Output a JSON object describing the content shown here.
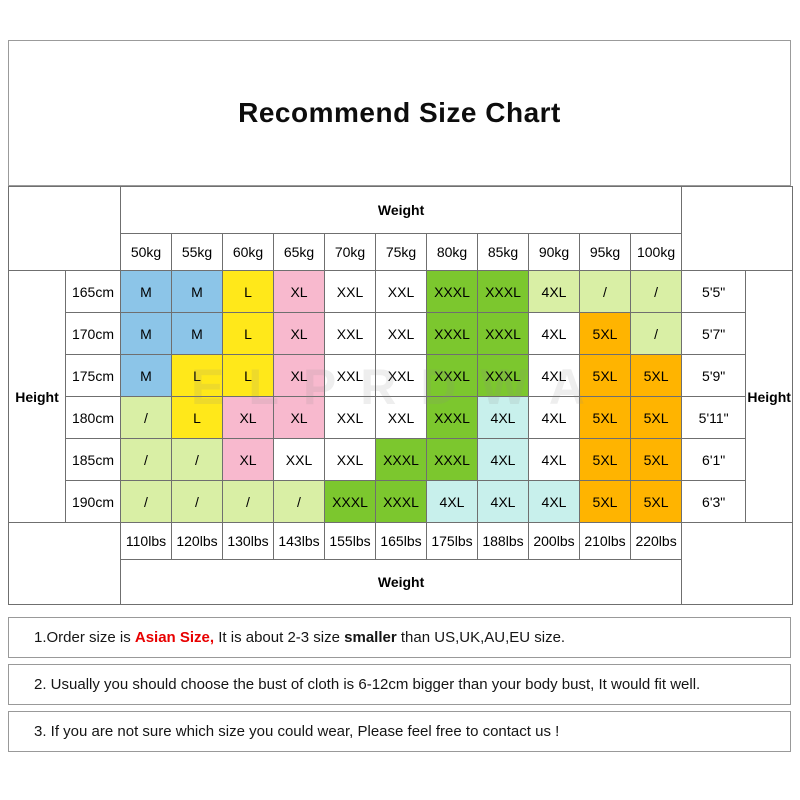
{
  "watermark": "ELPRDWA",
  "colors": {
    "blue": "#8CC5E8",
    "yellow": "#FFE81A",
    "pink": "#F8B9CE",
    "white": "#FFFFFF",
    "green": "#7CC72E",
    "cyan": "#C8F0EC",
    "palegreen": "#D9EFA5",
    "orange": "#FFB400"
  },
  "chart_data": {
    "type": "table",
    "title": "Recommend Size Chart",
    "axis_labels": {
      "top": "Weight",
      "bottom": "Weight",
      "left": "Height",
      "right": "Height"
    },
    "weights_kg": [
      "50kg",
      "55kg",
      "60kg",
      "65kg",
      "70kg",
      "75kg",
      "80kg",
      "85kg",
      "90kg",
      "95kg",
      "100kg"
    ],
    "weights_lbs": [
      "110lbs",
      "120lbs",
      "130lbs",
      "143lbs",
      "155lbs",
      "165lbs",
      "175lbs",
      "188lbs",
      "200lbs",
      "210lbs",
      "220lbs"
    ],
    "rows": [
      {
        "cm": "165cm",
        "ft": "5'5\"",
        "cells": [
          {
            "v": "M",
            "c": "blue"
          },
          {
            "v": "M",
            "c": "blue"
          },
          {
            "v": "L",
            "c": "yellow"
          },
          {
            "v": "XL",
            "c": "pink"
          },
          {
            "v": "XXL",
            "c": "white"
          },
          {
            "v": "XXL",
            "c": "white"
          },
          {
            "v": "XXXL",
            "c": "green"
          },
          {
            "v": "XXXL",
            "c": "green"
          },
          {
            "v": "4XL",
            "c": "palegreen"
          },
          {
            "v": "/",
            "c": "palegreen"
          },
          {
            "v": "/",
            "c": "palegreen"
          }
        ]
      },
      {
        "cm": "170cm",
        "ft": "5'7\"",
        "cells": [
          {
            "v": "M",
            "c": "blue"
          },
          {
            "v": "M",
            "c": "blue"
          },
          {
            "v": "L",
            "c": "yellow"
          },
          {
            "v": "XL",
            "c": "pink"
          },
          {
            "v": "XXL",
            "c": "white"
          },
          {
            "v": "XXL",
            "c": "white"
          },
          {
            "v": "XXXL",
            "c": "green"
          },
          {
            "v": "XXXL",
            "c": "green"
          },
          {
            "v": "4XL",
            "c": "white"
          },
          {
            "v": "5XL",
            "c": "orange"
          },
          {
            "v": "/",
            "c": "palegreen"
          }
        ]
      },
      {
        "cm": "175cm",
        "ft": "5'9\"",
        "cells": [
          {
            "v": "M",
            "c": "blue"
          },
          {
            "v": "L",
            "c": "yellow"
          },
          {
            "v": "L",
            "c": "yellow"
          },
          {
            "v": "XL",
            "c": "pink"
          },
          {
            "v": "XXL",
            "c": "white"
          },
          {
            "v": "XXL",
            "c": "white"
          },
          {
            "v": "XXXL",
            "c": "green"
          },
          {
            "v": "XXXL",
            "c": "green"
          },
          {
            "v": "4XL",
            "c": "white"
          },
          {
            "v": "5XL",
            "c": "orange"
          },
          {
            "v": "5XL",
            "c": "orange"
          }
        ]
      },
      {
        "cm": "180cm",
        "ft": "5'11\"",
        "cells": [
          {
            "v": "/",
            "c": "palegreen"
          },
          {
            "v": "L",
            "c": "yellow"
          },
          {
            "v": "XL",
            "c": "pink"
          },
          {
            "v": "XL",
            "c": "pink"
          },
          {
            "v": "XXL",
            "c": "white"
          },
          {
            "v": "XXL",
            "c": "white"
          },
          {
            "v": "XXXL",
            "c": "green"
          },
          {
            "v": "4XL",
            "c": "cyan"
          },
          {
            "v": "4XL",
            "c": "white"
          },
          {
            "v": "5XL",
            "c": "orange"
          },
          {
            "v": "5XL",
            "c": "orange"
          }
        ]
      },
      {
        "cm": "185cm",
        "ft": "6'1\"",
        "cells": [
          {
            "v": "/",
            "c": "palegreen"
          },
          {
            "v": "/",
            "c": "palegreen"
          },
          {
            "v": "XL",
            "c": "pink"
          },
          {
            "v": "XXL",
            "c": "white"
          },
          {
            "v": "XXL",
            "c": "white"
          },
          {
            "v": "XXXL",
            "c": "green"
          },
          {
            "v": "XXXL",
            "c": "green"
          },
          {
            "v": "4XL",
            "c": "cyan"
          },
          {
            "v": "4XL",
            "c": "white"
          },
          {
            "v": "5XL",
            "c": "orange"
          },
          {
            "v": "5XL",
            "c": "orange"
          }
        ]
      },
      {
        "cm": "190cm",
        "ft": "6'3\"",
        "cells": [
          {
            "v": "/",
            "c": "palegreen"
          },
          {
            "v": "/",
            "c": "palegreen"
          },
          {
            "v": "/",
            "c": "palegreen"
          },
          {
            "v": "/",
            "c": "palegreen"
          },
          {
            "v": "XXXL",
            "c": "green"
          },
          {
            "v": "XXXL",
            "c": "green"
          },
          {
            "v": "4XL",
            "c": "cyan"
          },
          {
            "v": "4XL",
            "c": "cyan"
          },
          {
            "v": "4XL",
            "c": "cyan"
          },
          {
            "v": "5XL",
            "c": "orange"
          },
          {
            "v": "5XL",
            "c": "orange"
          }
        ]
      }
    ]
  },
  "notes": [
    {
      "parts": [
        {
          "t": "1.Order size is ",
          "s": "normal"
        },
        {
          "t": "Asian Size,",
          "s": "red"
        },
        {
          "t": " It is about 2-3 size ",
          "s": "normal"
        },
        {
          "t": "smaller",
          "s": "bold"
        },
        {
          "t": " than US,UK,AU,EU size.",
          "s": "normal"
        }
      ]
    },
    {
      "parts": [
        {
          "t": "2. Usually you should choose the bust of cloth is 6-12cm bigger than your body bust, It would fit well.",
          "s": "normal"
        }
      ]
    },
    {
      "parts": [
        {
          "t": "3. If you are not sure which size you could wear, Please feel free to contact us !",
          "s": "normal"
        }
      ]
    }
  ]
}
